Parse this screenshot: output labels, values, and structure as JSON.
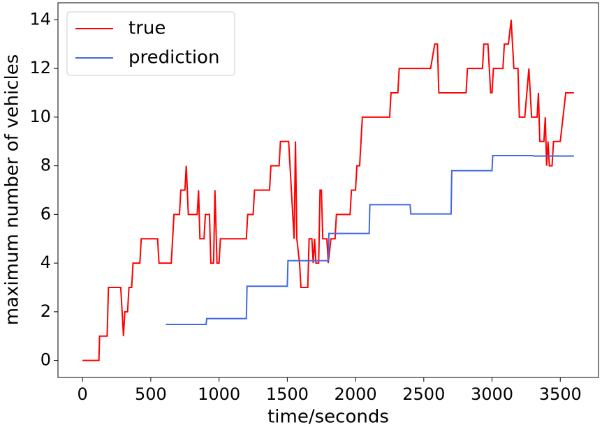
{
  "chart_data": {
    "type": "line",
    "xlabel": "time/seconds",
    "ylabel": "maximum number of vehicles",
    "xlim": [
      -180,
      3780
    ],
    "ylim": [
      -0.7,
      14.7
    ],
    "xticks": [
      0,
      500,
      1000,
      1500,
      2000,
      2500,
      3000,
      3500
    ],
    "yticks": [
      0,
      2,
      4,
      6,
      8,
      10,
      12,
      14
    ],
    "grid": false,
    "legend": "upper left",
    "series": [
      {
        "name": "true",
        "color": "#ff0000",
        "x": [
          0,
          120,
          125,
          180,
          190,
          280,
          300,
          310,
          330,
          340,
          360,
          370,
          420,
          430,
          550,
          560,
          650,
          670,
          710,
          720,
          750,
          760,
          775,
          840,
          850,
          860,
          890,
          900,
          930,
          940,
          960,
          970,
          985,
          1000,
          1010,
          1200,
          1210,
          1250,
          1260,
          1370,
          1380,
          1440,
          1450,
          1510,
          1550,
          1560,
          1570,
          1590,
          1600,
          1650,
          1660,
          1680,
          1690,
          1700,
          1710,
          1730,
          1740,
          1750,
          1760,
          1790,
          1800,
          1820,
          1850,
          1860,
          1960,
          1970,
          2000,
          2010,
          2030,
          2050,
          2250,
          2260,
          2310,
          2320,
          2550,
          2580,
          2600,
          2610,
          2810,
          2820,
          2930,
          2940,
          2970,
          2990,
          3000,
          3010,
          3080,
          3090,
          3120,
          3140,
          3160,
          3190,
          3200,
          3240,
          3270,
          3290,
          3330,
          3340,
          3350,
          3380,
          3390,
          3400,
          3410,
          3420,
          3440,
          3450,
          3500,
          3540,
          3600
        ],
        "values": [
          0,
          0,
          1,
          1,
          3,
          3,
          1,
          2,
          2,
          3,
          3,
          4,
          4,
          5,
          5,
          4,
          4,
          6,
          6,
          7,
          7,
          8,
          6,
          6,
          7,
          5,
          5,
          6,
          6,
          4,
          4,
          7,
          4,
          4,
          5,
          5,
          6,
          6,
          7,
          7,
          8,
          8,
          9,
          9,
          5,
          9,
          5,
          4,
          3,
          3,
          5,
          5,
          4,
          5,
          4,
          4,
          7,
          7,
          5,
          5,
          4,
          5,
          5,
          6,
          6,
          7,
          7,
          8,
          8,
          10,
          10,
          11,
          11,
          12,
          12,
          13,
          13,
          11,
          11,
          12,
          12,
          13,
          13,
          11,
          11,
          12,
          12,
          13,
          13,
          14,
          12,
          12,
          10,
          10,
          12,
          10,
          10,
          11,
          9,
          9,
          10,
          8,
          9,
          8,
          8,
          9,
          9,
          11,
          11
        ]
      },
      {
        "name": "prediction",
        "color": "#4169e1",
        "x": [
          610,
          905,
          910,
          1200,
          1205,
          1500,
          1505,
          1800,
          1805,
          2100,
          2105,
          2400,
          2405,
          2700,
          2705,
          3000,
          3005,
          3300,
          3305,
          3600
        ],
        "values": [
          1.48,
          1.48,
          1.72,
          1.72,
          3.05,
          3.05,
          4.1,
          4.1,
          5.22,
          5.22,
          6.4,
          6.4,
          6.02,
          6.02,
          7.8,
          7.8,
          8.42,
          8.42,
          8.4,
          8.4
        ]
      }
    ]
  }
}
